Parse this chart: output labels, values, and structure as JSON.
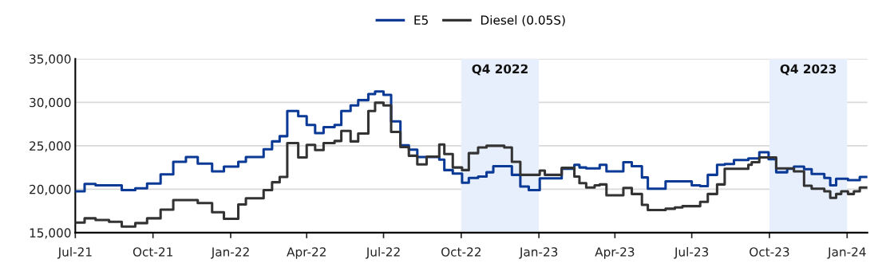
{
  "chart_data": {
    "type": "step",
    "series": [
      {
        "name": "E5",
        "color": "#0a3a96",
        "x": [
          "2021-07-01",
          "2021-07-12",
          "2021-07-25",
          "2021-08-25",
          "2021-09-10",
          "2021-09-24",
          "2021-10-10",
          "2021-10-25",
          "2021-11-09",
          "2021-11-23",
          "2021-12-10",
          "2021-12-24",
          "2022-01-10",
          "2022-01-19",
          "2022-02-09",
          "2022-02-19",
          "2022-02-28",
          "2022-03-09",
          "2022-03-22",
          "2022-04-01",
          "2022-04-11",
          "2022-04-21",
          "2022-05-04",
          "2022-05-12",
          "2022-05-23",
          "2022-06-01",
          "2022-06-13",
          "2022-06-21",
          "2022-07-01",
          "2022-07-10",
          "2022-07-21",
          "2022-07-31",
          "2022-08-10",
          "2022-09-05",
          "2022-09-11",
          "2022-09-21",
          "2022-10-02",
          "2022-10-10",
          "2022-10-21",
          "2022-10-31",
          "2022-11-08",
          "2022-11-30",
          "2022-12-10",
          "2022-12-20",
          "2023-01-02",
          "2023-01-28",
          "2023-02-12",
          "2023-02-18",
          "2023-02-26",
          "2023-03-14",
          "2023-03-22",
          "2023-04-11",
          "2023-04-21",
          "2023-05-03",
          "2023-05-10",
          "2023-05-31",
          "2023-07-01",
          "2023-07-11",
          "2023-07-20",
          "2023-07-31",
          "2023-08-09",
          "2023-08-20",
          "2023-09-06",
          "2023-09-19",
          "2023-09-30",
          "2023-10-09",
          "2023-10-22",
          "2023-10-30",
          "2023-11-11",
          "2023-11-20",
          "2023-12-05",
          "2023-12-12",
          "2023-12-19",
          "2024-01-02",
          "2024-01-16",
          "2024-01-25"
        ],
        "values": [
          19750,
          20600,
          20450,
          19900,
          20100,
          20650,
          21700,
          23150,
          23700,
          22950,
          22050,
          22600,
          23150,
          23700,
          24600,
          25500,
          26100,
          29000,
          28400,
          27400,
          26450,
          27150,
          27400,
          29000,
          29650,
          30250,
          30950,
          31250,
          30850,
          27800,
          25050,
          24550,
          23700,
          23400,
          22200,
          21800,
          20750,
          21300,
          21450,
          21950,
          22650,
          21650,
          20300,
          19900,
          21250,
          22350,
          22800,
          22500,
          22400,
          22800,
          22050,
          23100,
          22650,
          21350,
          20050,
          20900,
          20450,
          20350,
          21650,
          22800,
          22900,
          23350,
          23550,
          24250,
          23450,
          21950,
          22350,
          22600,
          22300,
          21750,
          21300,
          20450,
          21200,
          21050,
          21400,
          21400
        ]
      },
      {
        "name": "Diesel (0.05S)",
        "color": "#333333",
        "x": [
          "2021-07-01",
          "2021-07-12",
          "2021-07-25",
          "2021-08-10",
          "2021-08-25",
          "2021-09-10",
          "2021-09-24",
          "2021-10-10",
          "2021-10-25",
          "2021-11-23",
          "2021-12-10",
          "2021-12-24",
          "2022-01-10",
          "2022-01-19",
          "2022-02-09",
          "2022-02-19",
          "2022-02-28",
          "2022-03-09",
          "2022-03-22",
          "2022-04-01",
          "2022-04-11",
          "2022-04-21",
          "2022-05-04",
          "2022-05-12",
          "2022-05-23",
          "2022-06-01",
          "2022-06-13",
          "2022-06-21",
          "2022-07-01",
          "2022-07-10",
          "2022-07-21",
          "2022-07-31",
          "2022-08-10",
          "2022-08-21",
          "2022-09-05",
          "2022-09-11",
          "2022-09-21",
          "2022-10-02",
          "2022-10-10",
          "2022-10-21",
          "2022-10-31",
          "2022-11-21",
          "2022-11-30",
          "2022-12-10",
          "2023-01-02",
          "2023-01-08",
          "2023-01-28",
          "2023-02-12",
          "2023-02-18",
          "2023-02-26",
          "2023-03-08",
          "2023-03-14",
          "2023-03-22",
          "2023-04-11",
          "2023-04-21",
          "2023-05-03",
          "2023-05-10",
          "2023-05-31",
          "2023-06-11",
          "2023-06-20",
          "2023-07-11",
          "2023-07-20",
          "2023-07-31",
          "2023-08-09",
          "2023-09-06",
          "2023-09-10",
          "2023-09-19",
          "2023-10-09",
          "2023-10-30",
          "2023-11-11",
          "2023-11-20",
          "2023-12-05",
          "2023-12-12",
          "2023-12-19",
          "2023-12-25",
          "2024-01-02",
          "2024-01-09",
          "2024-01-16",
          "2024-01-25"
        ],
        "values": [
          16150,
          16650,
          16450,
          16250,
          15700,
          16100,
          16650,
          17650,
          18750,
          18400,
          17350,
          16600,
          18250,
          18950,
          19900,
          20800,
          21400,
          25300,
          23650,
          25100,
          24500,
          25300,
          25550,
          26700,
          25500,
          26400,
          29000,
          29950,
          29650,
          26600,
          24850,
          23850,
          22850,
          23750,
          25150,
          24050,
          22500,
          22200,
          24150,
          24800,
          25000,
          24800,
          23150,
          21650,
          22150,
          21650,
          22450,
          21450,
          20700,
          20200,
          20450,
          20550,
          19300,
          20150,
          19450,
          18200,
          17600,
          17750,
          17900,
          18050,
          18550,
          19450,
          20550,
          22350,
          22800,
          23100,
          23650,
          22400,
          22050,
          20400,
          20050,
          19750,
          19000,
          19450,
          19750,
          19450,
          19750,
          20200,
          20200
        ]
      }
    ],
    "xlim": [
      "2021-07-01",
      "2024-01-25"
    ],
    "xticks": [
      {
        "value": "2021-07-01",
        "label": "Jul-21"
      },
      {
        "value": "2021-10-01",
        "label": "Oct-21"
      },
      {
        "value": "2022-01-01",
        "label": "Jan-22"
      },
      {
        "value": "2022-04-01",
        "label": "Apr-22"
      },
      {
        "value": "2022-07-01",
        "label": "Jul-22"
      },
      {
        "value": "2022-10-01",
        "label": "Oct-22"
      },
      {
        "value": "2023-01-01",
        "label": "Jan-23"
      },
      {
        "value": "2023-04-01",
        "label": "Apr-23"
      },
      {
        "value": "2023-07-01",
        "label": "Jul-23"
      },
      {
        "value": "2023-10-01",
        "label": "Oct-23"
      },
      {
        "value": "2024-01-01",
        "label": "Jan-24"
      }
    ],
    "ylim": [
      15000,
      35000
    ],
    "yticks": [
      {
        "value": 15000,
        "label": "15,000"
      },
      {
        "value": 20000,
        "label": "20,000"
      },
      {
        "value": 25000,
        "label": "25,000"
      },
      {
        "value": 30000,
        "label": "30,000"
      },
      {
        "value": 35000,
        "label": "35,000"
      }
    ],
    "bands": [
      {
        "axis": "x",
        "from": "2022-10-01",
        "to": "2023-01-01",
        "label": "Q4 2022",
        "color": "#e8effc"
      },
      {
        "axis": "x",
        "from": "2023-10-01",
        "to": "2024-01-01",
        "label": "Q4 2023",
        "color": "#e8effc"
      }
    ],
    "grid": "y",
    "legend": "top",
    "line_style": "solid",
    "marker": "none"
  }
}
